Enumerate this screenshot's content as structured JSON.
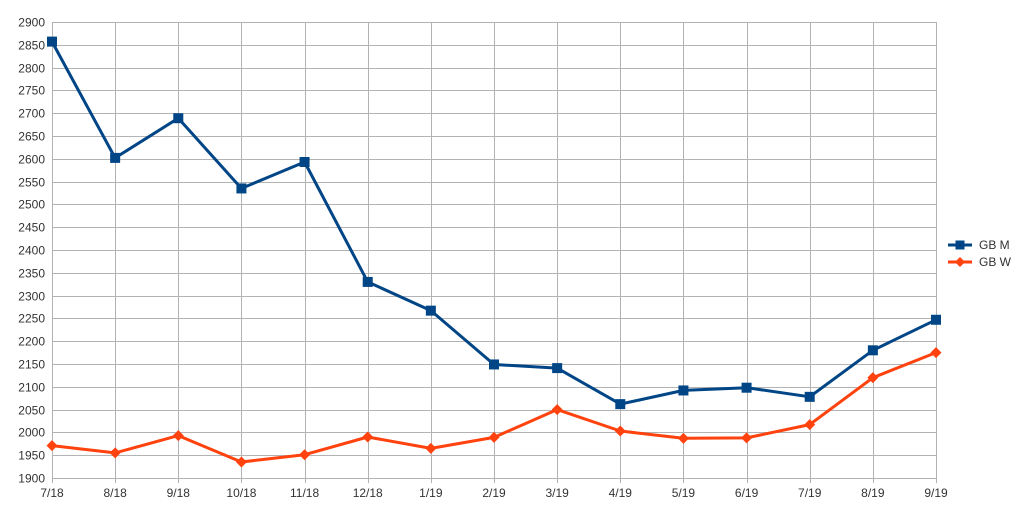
{
  "chart_data": {
    "type": "line",
    "categories": [
      "7/18",
      "8/18",
      "9/18",
      "10/18",
      "11/18",
      "12/18",
      "1/19",
      "2/19",
      "3/19",
      "4/19",
      "5/19",
      "6/19",
      "7/19",
      "8/19",
      "9/19"
    ],
    "ylim": [
      1900,
      2900
    ],
    "yticks": [
      1900,
      1950,
      2000,
      2050,
      2100,
      2150,
      2200,
      2250,
      2300,
      2350,
      2400,
      2450,
      2500,
      2550,
      2600,
      2650,
      2700,
      2750,
      2800,
      2850,
      2900
    ],
    "grid": true,
    "legend_position": "right",
    "series": [
      {
        "name": "GB M",
        "color": "#004586",
        "marker": "square",
        "values": [
          2857,
          2602,
          2689,
          2535,
          2593,
          2330,
          2267,
          2149,
          2141,
          2062,
          2092,
          2098,
          2078,
          2180,
          2247
        ]
      },
      {
        "name": "GB W",
        "color": "#ff420e",
        "marker": "diamond",
        "values": [
          1971,
          1955,
          1993,
          1935,
          1951,
          1990,
          1965,
          1989,
          2050,
          2003,
          1987,
          1988,
          2017,
          2120,
          2175
        ]
      }
    ]
  }
}
